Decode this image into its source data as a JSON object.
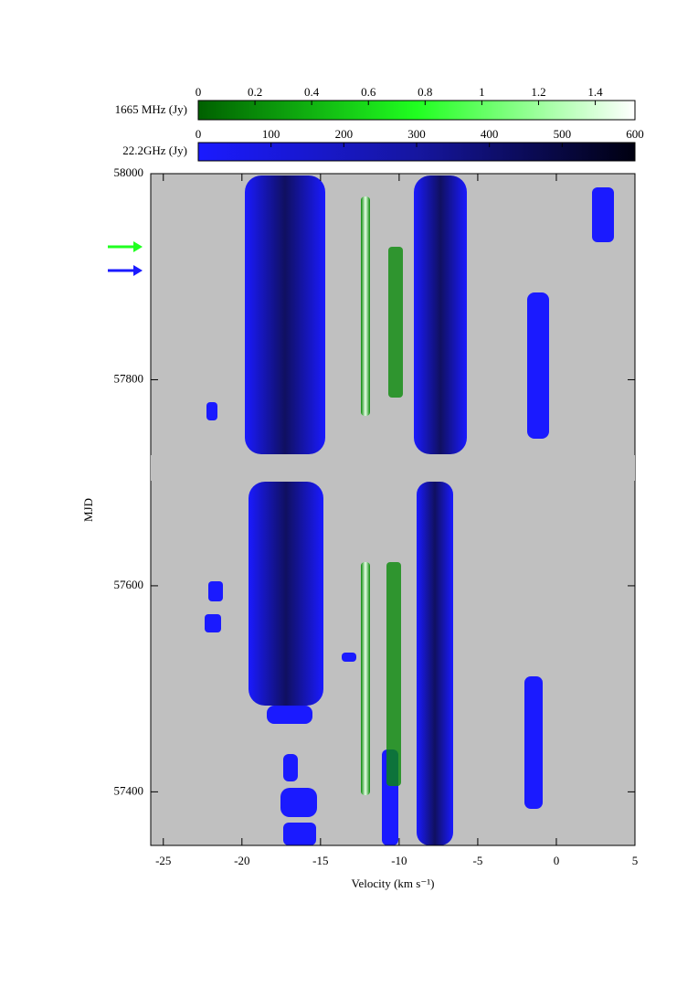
{
  "chart_data": {
    "type": "image-plot",
    "xlabel": "Velocity (km s⁻¹)",
    "ylabel": "MJD",
    "xlim": [
      -25.8,
      5
    ],
    "xticks": [
      -25,
      -20,
      -15,
      -10,
      -5,
      0,
      5
    ],
    "ylim": [
      57348,
      58000
    ],
    "yticks": [
      57400,
      57600,
      57800,
      58000
    ],
    "colorbars": [
      {
        "label": "1665 MHz  (Jy)",
        "lim": [
          0,
          1.54
        ],
        "ticks": [
          0,
          0.2,
          0.4,
          0.6,
          0.8,
          1,
          1.2,
          1.4
        ]
      },
      {
        "label": "22.2GHz   (Jy)",
        "lim": [
          0,
          600
        ],
        "ticks": [
          0,
          100,
          200,
          300,
          400,
          500,
          600
        ]
      }
    ]
  }
}
